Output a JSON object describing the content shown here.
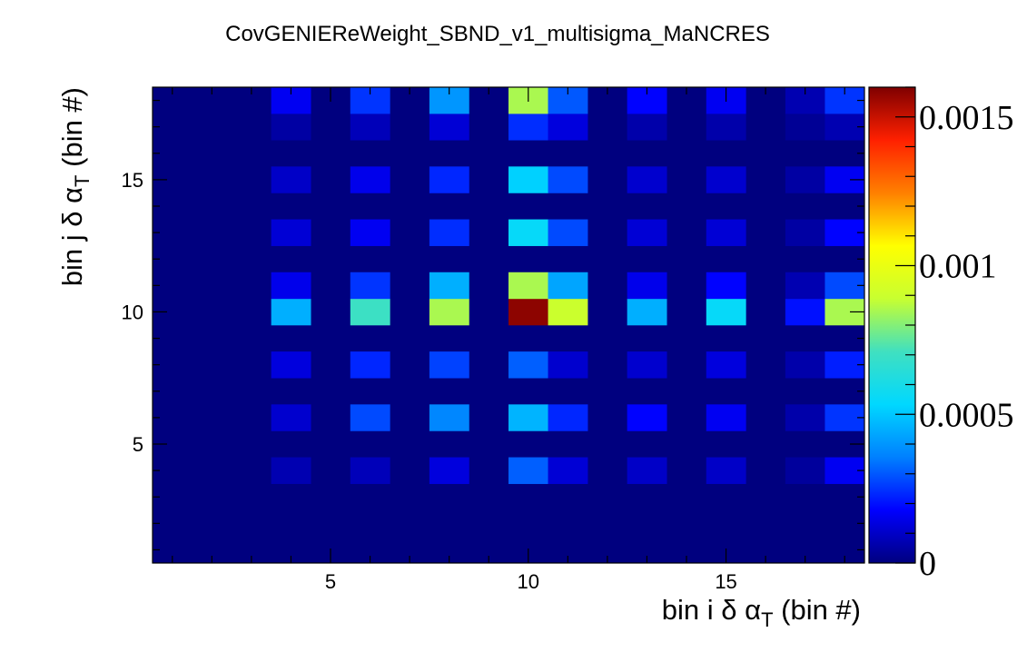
{
  "chart_data": {
    "type": "heatmap",
    "title": "CovGENIEReWeight_SBND_v1_multisigma_MaNCRES",
    "xlabel": {
      "prefix": "bin i ",
      "greek": "δ α",
      "sub": "T",
      "suffix": " (bin #)"
    },
    "ylabel": {
      "prefix": "bin j ",
      "greek": "δ α",
      "sub": "T",
      "suffix": " (bin #)"
    },
    "xlim": [
      0.5,
      18.5
    ],
    "ylim": [
      0.5,
      18.5
    ],
    "x_ticks": [
      5,
      10,
      15
    ],
    "y_ticks": [
      5,
      10,
      15
    ],
    "z_range": [
      0,
      0.0016
    ],
    "z_ticks": [
      {
        "value": 0,
        "label": "0"
      },
      {
        "value": 0.0005,
        "label": "0.0005"
      },
      {
        "value": 0.001,
        "label": "0.001"
      },
      {
        "value": 0.0015,
        "label": "0.0015"
      }
    ],
    "colormap": [
      "#00007f",
      "#0000ff",
      "#0080ff",
      "#00d8ff",
      "#40e0c0",
      "#c8ff30",
      "#ffff00",
      "#ff8000",
      "#ff2000",
      "#7f0000"
    ],
    "x_bins_nonzero": [
      4,
      6,
      8,
      10,
      11,
      13,
      15,
      17,
      18
    ],
    "y_bins_nonzero": [
      4,
      6,
      8,
      10,
      11,
      13,
      15,
      17,
      18
    ],
    "bin_weights": [
      0.21,
      0.48,
      0.35,
      1.0,
      0.55,
      0.36,
      0.34,
      0.16,
      0.49
    ],
    "rendered_cells": [
      [
        4,
        4,
        7e-05
      ],
      [
        4,
        6,
        0.00011
      ],
      [
        4,
        8,
        0.00013
      ],
      [
        4,
        10,
        0.00045
      ],
      [
        4,
        11,
        0.00015
      ],
      [
        4,
        13,
        0.00012
      ],
      [
        4,
        15,
        0.0001
      ],
      [
        4,
        17,
        5e-05
      ],
      [
        4,
        18,
        0.00016
      ],
      [
        6,
        4,
        8e-05
      ],
      [
        6,
        6,
        0.00028
      ],
      [
        6,
        8,
        0.00023
      ],
      [
        6,
        10,
        0.0007
      ],
      [
        6,
        11,
        0.00025
      ],
      [
        6,
        13,
        0.00016
      ],
      [
        6,
        15,
        0.00015
      ],
      [
        6,
        17,
        8e-05
      ],
      [
        6,
        18,
        0.00025
      ],
      [
        8,
        4,
        0.00013
      ],
      [
        8,
        6,
        0.00037
      ],
      [
        8,
        8,
        0.00027
      ],
      [
        8,
        10,
        0.00085
      ],
      [
        8,
        11,
        0.00045
      ],
      [
        8,
        13,
        0.00024
      ],
      [
        8,
        15,
        0.00023
      ],
      [
        8,
        17,
        0.00012
      ],
      [
        8,
        18,
        0.0004
      ],
      [
        10,
        4,
        0.00031
      ],
      [
        10,
        6,
        0.00046
      ],
      [
        10,
        8,
        0.00031
      ],
      [
        10,
        10,
        0.00158
      ],
      [
        10,
        11,
        0.00085
      ],
      [
        10,
        13,
        0.00055
      ],
      [
        10,
        15,
        0.00052
      ],
      [
        10,
        17,
        0.00024
      ],
      [
        10,
        18,
        0.00085
      ],
      [
        11,
        4,
        0.00012
      ],
      [
        11,
        6,
        0.00023
      ],
      [
        11,
        8,
        0.00011
      ],
      [
        11,
        10,
        0.0009
      ],
      [
        11,
        11,
        0.00043
      ],
      [
        11,
        13,
        0.00028
      ],
      [
        11,
        15,
        0.00028
      ],
      [
        11,
        17,
        0.00013
      ],
      [
        11,
        18,
        0.0003
      ],
      [
        13,
        4,
        0.0001
      ],
      [
        13,
        6,
        0.00018
      ],
      [
        13,
        8,
        0.00011
      ],
      [
        13,
        10,
        0.00045
      ],
      [
        13,
        11,
        0.00015
      ],
      [
        13,
        13,
        0.00012
      ],
      [
        13,
        15,
        0.00011
      ],
      [
        13,
        17,
        6e-05
      ],
      [
        13,
        18,
        0.00018
      ],
      [
        15,
        4,
        0.0001
      ],
      [
        15,
        6,
        0.00016
      ],
      [
        15,
        8,
        0.00013
      ],
      [
        15,
        10,
        0.00055
      ],
      [
        15,
        11,
        0.00018
      ],
      [
        15,
        13,
        0.00012
      ],
      [
        15,
        15,
        0.00011
      ],
      [
        15,
        17,
        6e-05
      ],
      [
        15,
        18,
        0.00016
      ],
      [
        17,
        4,
        4e-05
      ],
      [
        17,
        6,
        6e-05
      ],
      [
        17,
        8,
        6e-05
      ],
      [
        17,
        10,
        0.0002
      ],
      [
        17,
        11,
        7e-05
      ],
      [
        17,
        13,
        5e-05
      ],
      [
        17,
        15,
        5e-05
      ],
      [
        17,
        17,
        3e-05
      ],
      [
        17,
        18,
        7e-05
      ],
      [
        18,
        4,
        0.00016
      ],
      [
        18,
        6,
        0.00025
      ],
      [
        18,
        8,
        0.00022
      ],
      [
        18,
        10,
        0.00085
      ],
      [
        18,
        11,
        0.00028
      ],
      [
        18,
        13,
        0.00018
      ],
      [
        18,
        15,
        0.00016
      ],
      [
        18,
        17,
        7e-05
      ],
      [
        18,
        18,
        0.00025
      ]
    ]
  }
}
